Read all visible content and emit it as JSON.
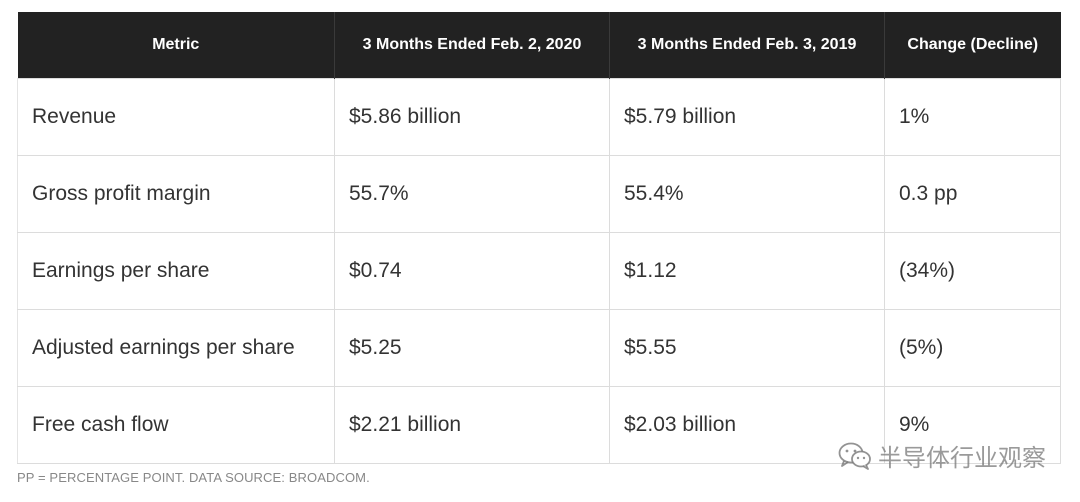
{
  "table": {
    "headers": [
      "Metric",
      "3 Months Ended Feb. 2, 2020",
      "3 Months Ended Feb. 3, 2019",
      "Change (Decline)"
    ],
    "rows": [
      [
        "Revenue",
        "$5.86 billion",
        "$5.79 billion",
        "1%"
      ],
      [
        "Gross profit margin",
        "55.7%",
        "55.4%",
        "0.3 pp"
      ],
      [
        "Earnings per share",
        "$0.74",
        "$1.12",
        "(34%)"
      ],
      [
        "Adjusted earnings per share",
        "$5.25",
        "$5.55",
        "(5%)"
      ],
      [
        "Free cash flow",
        "$2.21 billion",
        "$2.03 billion",
        "9%"
      ]
    ]
  },
  "footnote": "PP = PERCENTAGE POINT. DATA SOURCE: BROADCOM.",
  "watermark": {
    "icon": "wechat-icon",
    "text": "半导体行业观察"
  },
  "colors": {
    "header_bg": "#222222",
    "header_text": "#ffffff",
    "cell_text": "#333333",
    "border": "#dcdcdc",
    "footnote": "#888888"
  }
}
